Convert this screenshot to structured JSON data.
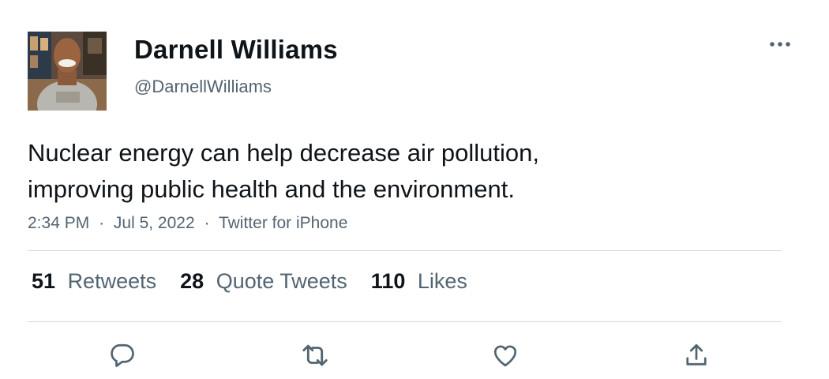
{
  "author": {
    "display_name": "Darnell Williams",
    "handle": "@DarnellWilliams",
    "avatar_icon": "avatar-photo"
  },
  "tweet": {
    "text_lines": [
      "Nuclear energy can help decrease air pollution,",
      "improving public health and the environment."
    ],
    "time": "2:34 PM",
    "date": "Jul 5, 2022",
    "source": "Twitter for iPhone",
    "separator": "·"
  },
  "stats": {
    "retweets": {
      "count": "51",
      "label": "Retweets"
    },
    "quote_tweets": {
      "count": "28",
      "label": "Quote Tweets"
    },
    "likes": {
      "count": "110",
      "label": "Likes"
    }
  },
  "actions": {
    "reply_icon": "reply-icon",
    "retweet_icon": "retweet-icon",
    "like_icon": "like-icon",
    "share_icon": "share-icon",
    "more_icon": "more-icon"
  },
  "colors": {
    "text": "#0f1419",
    "secondary": "#536471",
    "divider": "#cfd9de",
    "background": "#ffffff"
  }
}
